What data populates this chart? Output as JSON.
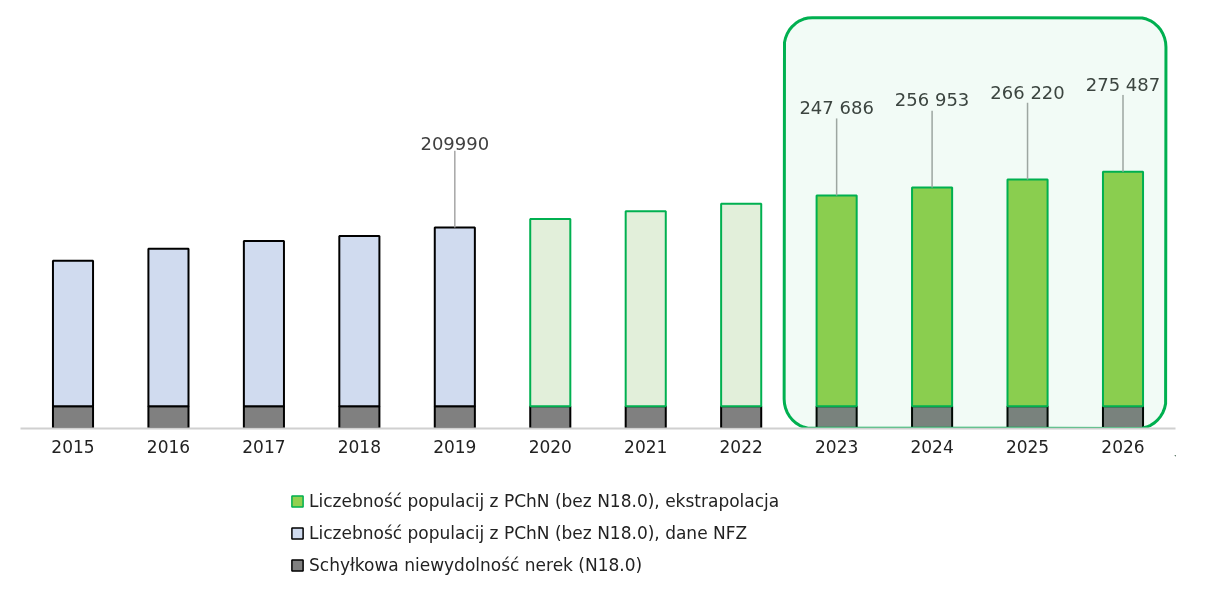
{
  "chart_data": {
    "type": "bar",
    "stacked": true,
    "legend": "bottom",
    "categories": [
      "2015",
      "2016",
      "2017",
      "2018",
      "2019",
      "2020",
      "2021",
      "2022",
      "2023",
      "2024",
      "2025",
      "2026"
    ],
    "series": [
      {
        "name": "Schyłkowa niewydolność nerek (N18.0)",
        "color": "#808080",
        "values": [
          26000,
          26000,
          26000,
          26000,
          26000,
          26000,
          26000,
          26000,
          26000,
          26000,
          26000,
          26000
        ]
      },
      {
        "name": "Liczebność populacij z PChN (bez N18.0), dane NFZ",
        "color": "#d0dbef",
        "values": [
          171000,
          185000,
          194000,
          200000,
          209990,
          null,
          null,
          null,
          null,
          null,
          null,
          null
        ],
        "value_labels": [
          null,
          null,
          null,
          null,
          "209990",
          null,
          null,
          null,
          null,
          null,
          null,
          null
        ]
      },
      {
        "name": "Liczebność populacij z PChN (bez N18.0), ekstrapolacja",
        "color": "#92d050",
        "colors": [
          null,
          null,
          null,
          null,
          null,
          "#e2efda",
          "#e2efda",
          "#e2efda",
          "#92d050",
          "#92d050",
          "#92d050",
          "#92d050"
        ],
        "values": [
          null,
          null,
          null,
          null,
          null,
          220000,
          229000,
          238000,
          247686,
          256953,
          266220,
          275487
        ],
        "value_labels": [
          null,
          null,
          null,
          null,
          null,
          null,
          null,
          null,
          "247 686",
          "256 953",
          "266 220",
          "275 487"
        ]
      }
    ],
    "bands": [
      {
        "axis": "x",
        "from": "2023",
        "to": "2026",
        "color": "#00b050"
      }
    ]
  }
}
